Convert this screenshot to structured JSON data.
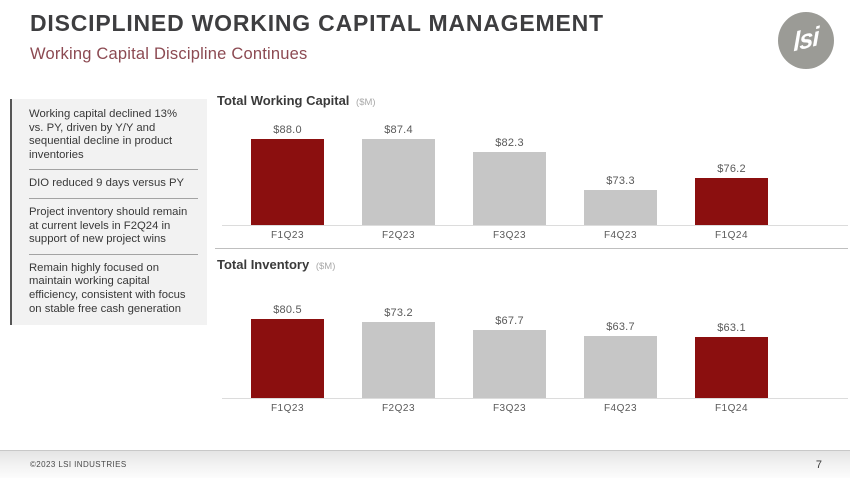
{
  "header": {
    "title": "DISCIPLINED WORKING CAPITAL MANAGEMENT",
    "subtitle": "Working Capital Discipline Continues",
    "logo_text": "lsi"
  },
  "sidebar": {
    "notes": [
      "Working capital declined 13% vs. PY, driven by Y/Y and sequential decline in product inventories",
      "DIO reduced 9 days versus PY",
      "Project inventory should remain at current levels in F2Q24 in support of new project wins",
      "Remain highly focused on maintain working capital efficiency, consistent with focus on stable free cash generation"
    ]
  },
  "chart_data": [
    {
      "type": "bar",
      "title": "Total Working Capital",
      "unit_label": "($M)",
      "categories": [
        "F1Q23",
        "F2Q23",
        "F3Q23",
        "F4Q23",
        "F1Q24"
      ],
      "values": [
        88.0,
        87.4,
        82.3,
        73.3,
        76.2
      ],
      "value_labels": [
        "$88.0",
        "$87.4",
        "$82.3",
        "$73.3",
        "$76.2"
      ],
      "ylim": [
        65,
        89
      ],
      "grid": false,
      "legend": false,
      "bar_color": "#c6c6c6",
      "highlight_color": "#8b0f0f",
      "highlight_indices": [
        0,
        4
      ]
    },
    {
      "type": "bar",
      "title": "Total Inventory",
      "unit_label": "($M)",
      "categories": [
        "F1Q23",
        "F2Q23",
        "F3Q23",
        "F4Q23",
        "F1Q24"
      ],
      "values": [
        80.5,
        73.2,
        67.7,
        63.7,
        63.1
      ],
      "value_labels": [
        "$80.5",
        "$73.2",
        "$67.7",
        "$63.7",
        "$63.1"
      ],
      "ylim": [
        23,
        85
      ],
      "grid": false,
      "legend": false,
      "bar_color": "#c6c6c6",
      "highlight_color": "#8b0f0f",
      "highlight_indices": [
        0,
        4
      ]
    }
  ],
  "footer": {
    "copyright": "©2023 LSI INDUSTRIES",
    "page_number": "7"
  },
  "colors": {
    "accent_red": "#8b0f0f",
    "bar_gray": "#c6c6c6",
    "subtitle_maroon": "#8c4a52",
    "title_gray": "#3e3e40"
  }
}
